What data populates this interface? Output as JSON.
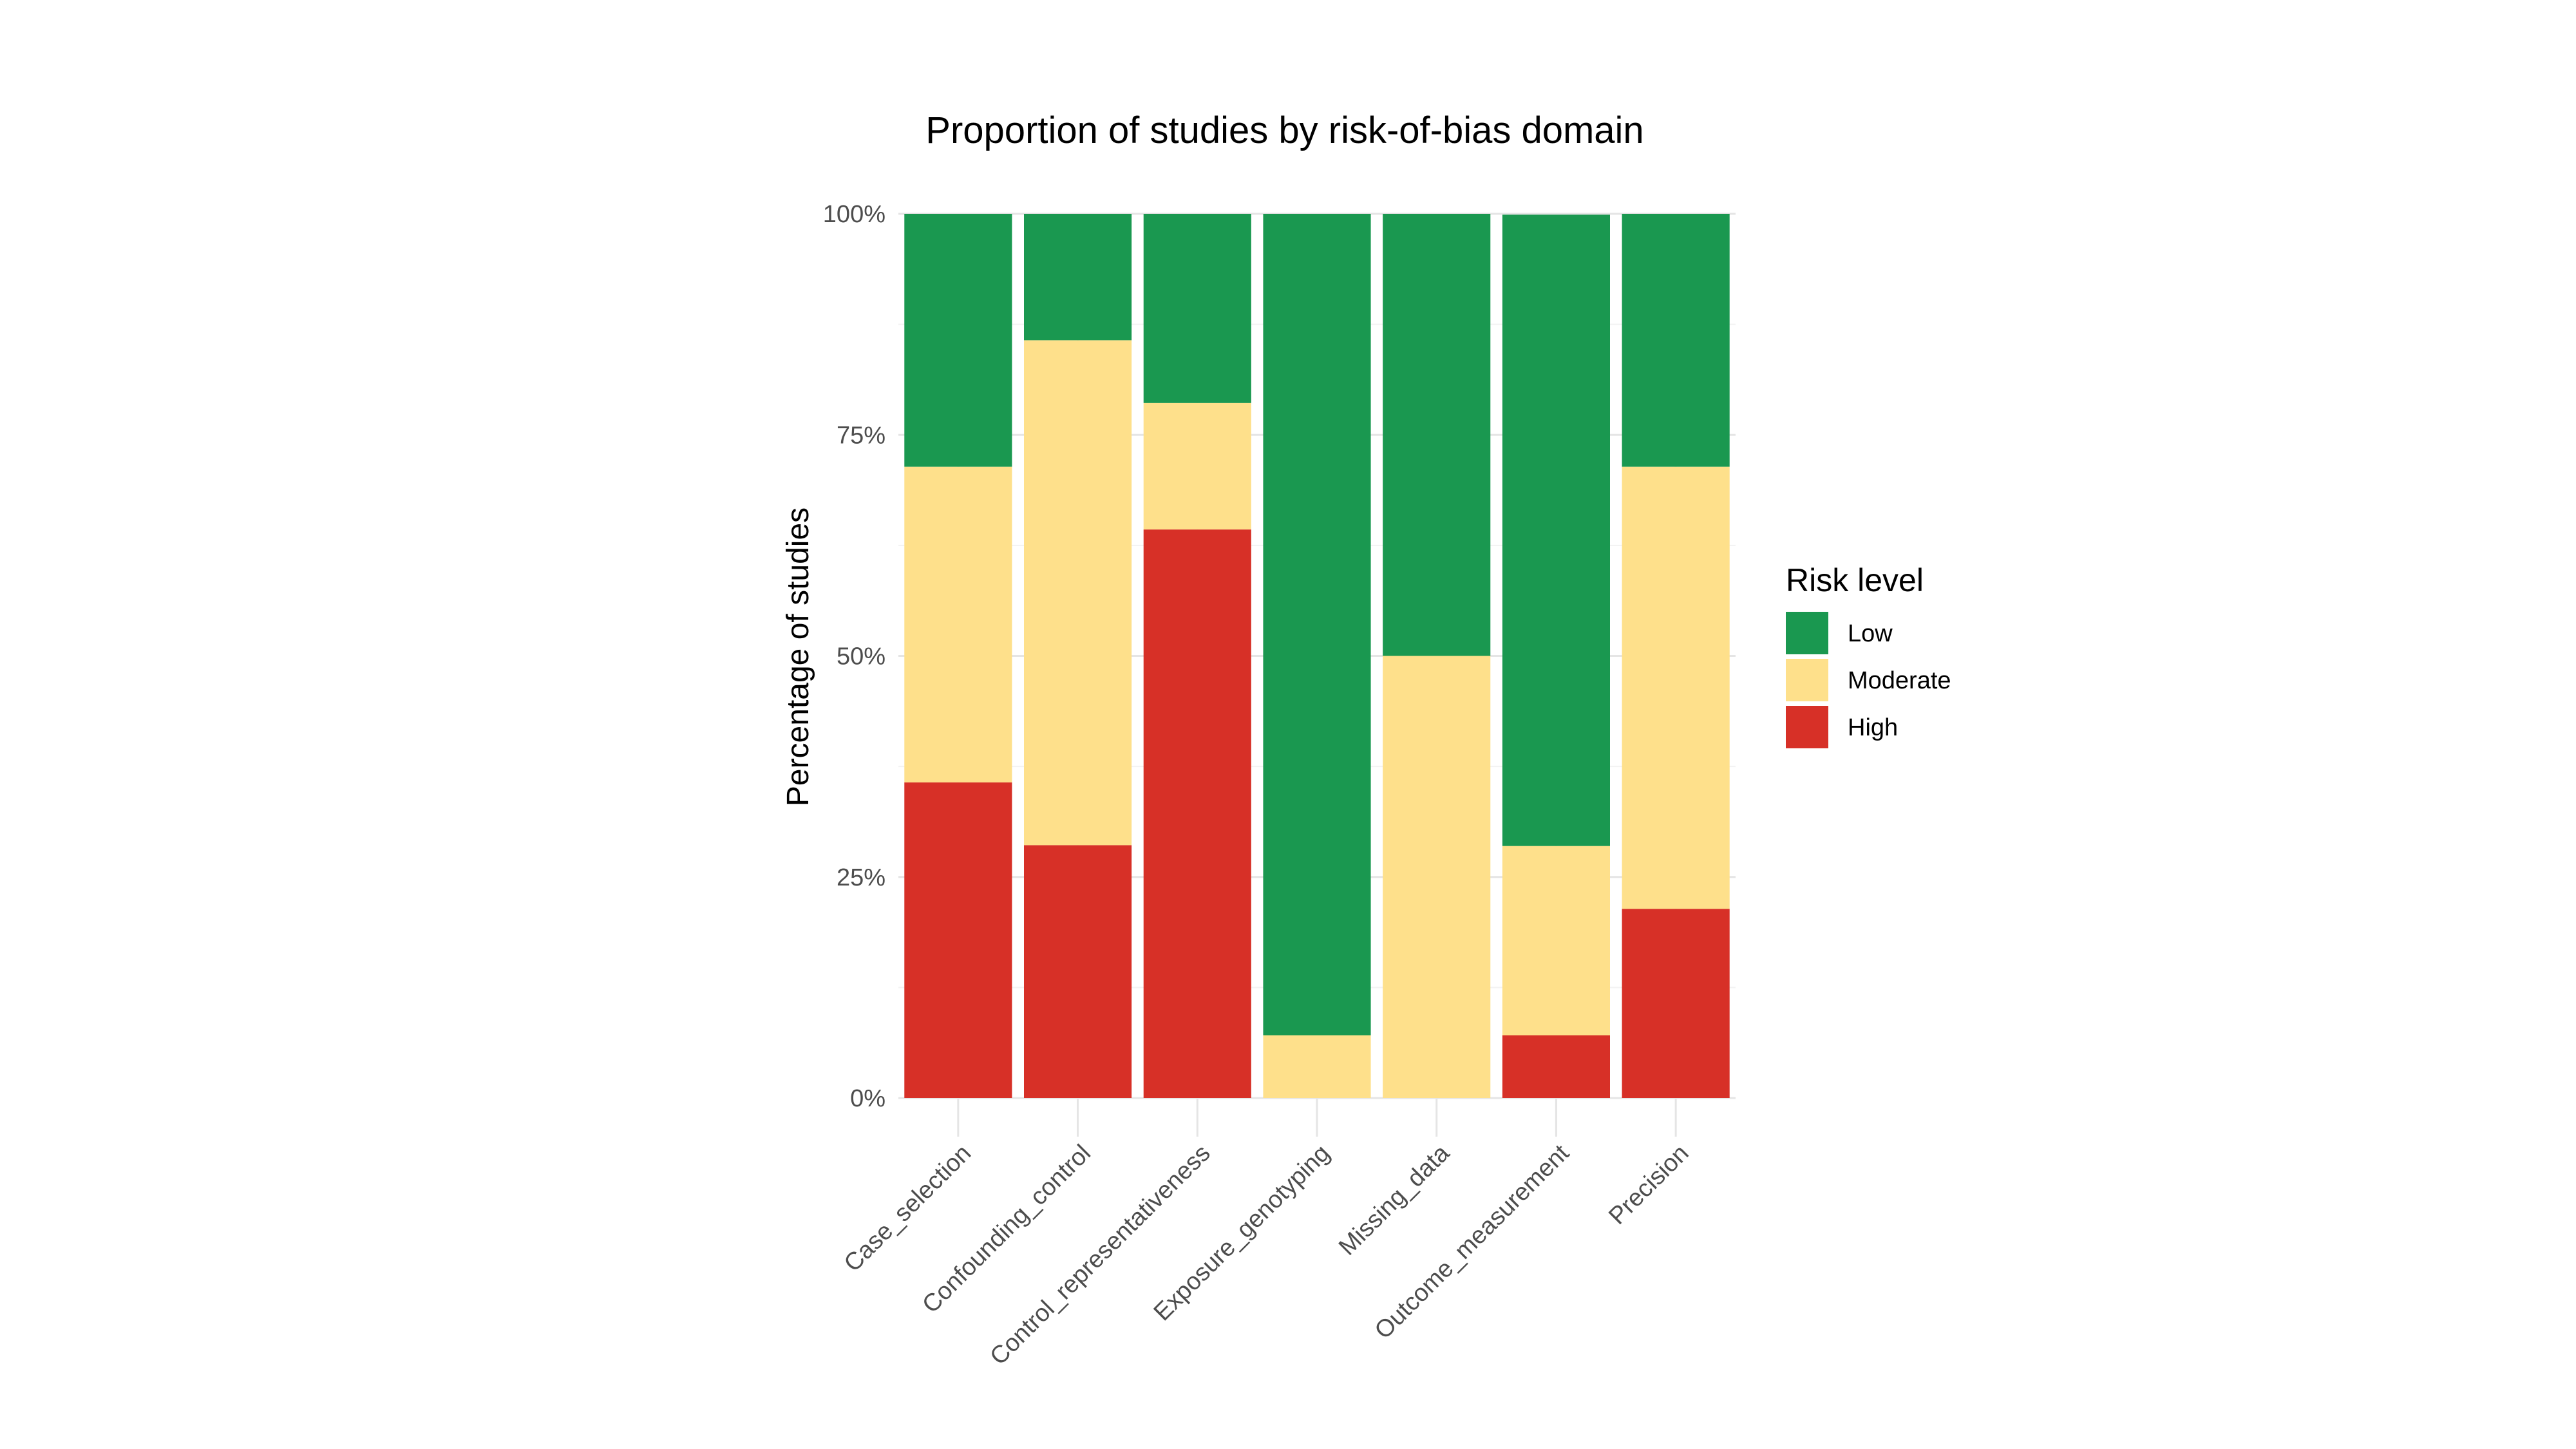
{
  "chart_data": {
    "type": "bar",
    "stacked": true,
    "title": "Proportion of studies by risk-of-bias domain",
    "xlabel": "",
    "ylabel": "Percentage of studies",
    "ylim": [
      0,
      100
    ],
    "yticks": [
      0,
      25,
      50,
      75,
      100
    ],
    "ytick_labels": [
      "0%",
      "25%",
      "50%",
      "75%",
      "100%"
    ],
    "grid": true,
    "legend_position": "right",
    "legend_title": "Risk level",
    "categories": [
      "Case_selection",
      "Confounding_control",
      "Control_representativeness",
      "Exposure_genotyping",
      "Missing_data",
      "Outcome_measurement",
      "Precision"
    ],
    "series": [
      {
        "name": "High",
        "color": "#D73027",
        "values": [
          35.7,
          28.6,
          64.3,
          0,
          0,
          7.1,
          21.4
        ]
      },
      {
        "name": "Moderate",
        "color": "#FEE08B",
        "values": [
          35.7,
          57.1,
          14.3,
          7.1,
          50,
          21.4,
          50
        ]
      },
      {
        "name": "Low",
        "color": "#1A9850",
        "values": [
          28.6,
          14.3,
          21.4,
          92.9,
          50,
          71.4,
          28.6
        ]
      }
    ],
    "legend_order": [
      "Low",
      "Moderate",
      "High"
    ]
  }
}
